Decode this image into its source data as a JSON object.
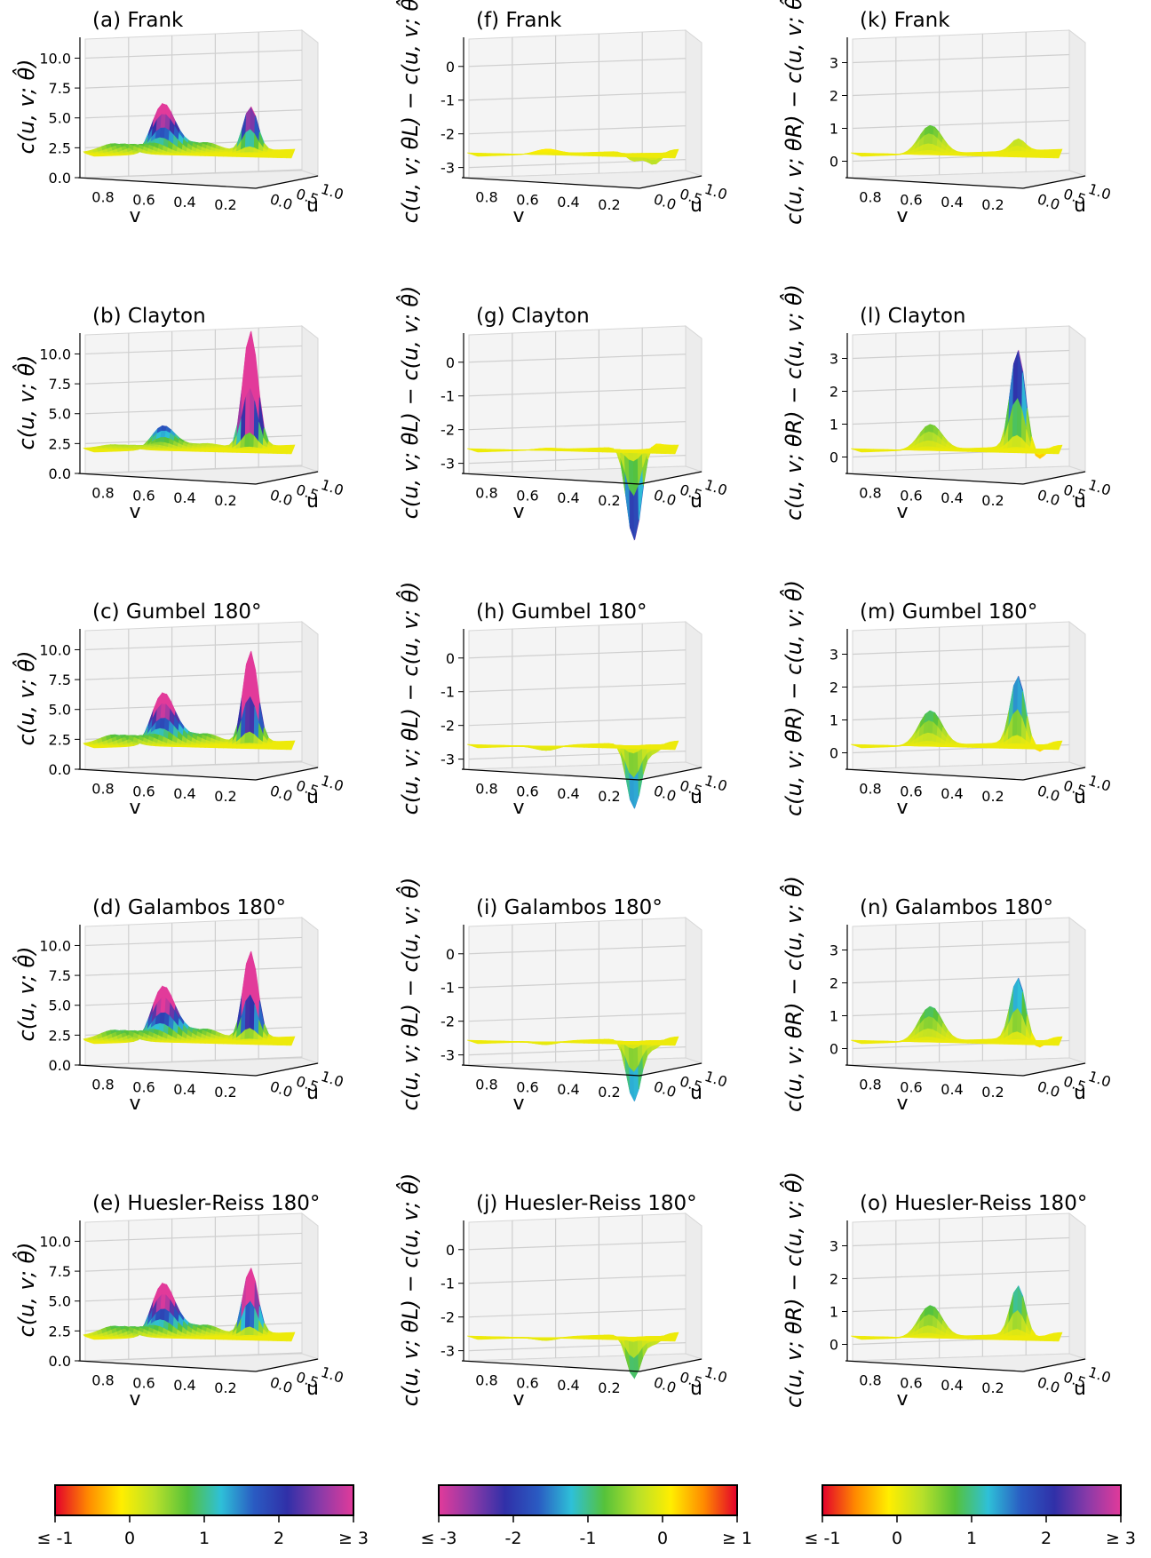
{
  "figure": {
    "columns": [
      {
        "zlabel": "c(u, v; θ̂)",
        "zticks": [
          "0.0",
          "2.5",
          "5.0",
          "7.5",
          "10.0"
        ],
        "xlabel": "v",
        "xticks": [
          "0.8",
          "0.6",
          "0.4",
          "0.2"
        ],
        "ylabel": "u",
        "yticks": [
          "0.0",
          "0.5",
          "1.0"
        ],
        "colorbar": {
          "ticks": [
            "≤ -1",
            "0",
            "1",
            "2",
            "≥ 3"
          ],
          "colors": [
            "#e3002b",
            "#ff8a00",
            "#ffee00",
            "#b8e02a",
            "#56c23a",
            "#2ec0d8",
            "#2a5bc2",
            "#3030a8",
            "#8a3aa8",
            "#e23a9a"
          ]
        },
        "panels": [
          {
            "title": "(a) Frank",
            "peak": 4.2,
            "tail_peak": 4.0,
            "corner_dip": 0
          },
          {
            "title": "(b) Clayton",
            "peak": 2.0,
            "tail_peak": 10.5,
            "corner_dip": 0
          },
          {
            "title": "(c) Gumbel 180°",
            "peak": 4.4,
            "tail_peak": 8.3,
            "corner_dip": 0
          },
          {
            "title": "(d) Galambos 180°",
            "peak": 4.6,
            "tail_peak": 7.9,
            "corner_dip": 0
          },
          {
            "title": "(e) Huesler-Reiss 180°",
            "peak": 4.5,
            "tail_peak": 6.0,
            "corner_dip": 0
          }
        ]
      },
      {
        "zlabel": "c(u, v; θL) − c(u, v; θ̂)",
        "zticks": [
          "-3",
          "-2",
          "-1",
          "0"
        ],
        "xlabel": "v",
        "xticks": [
          "0.8",
          "0.6",
          "0.4",
          "0.2"
        ],
        "ylabel": "u",
        "yticks": [
          "0.0",
          "0.5",
          "1.0"
        ],
        "colorbar": {
          "ticks": [
            "≤ -3",
            "-2",
            "-1",
            "0",
            "≥ 1"
          ],
          "colors": [
            "#e23a9a",
            "#8a3aa8",
            "#3030a8",
            "#2a5bc2",
            "#2ec0d8",
            "#56c23a",
            "#b8e02a",
            "#ffee00",
            "#ff8a00",
            "#e3002b"
          ]
        },
        "panels": [
          {
            "title": "(f) Frank",
            "peak": 0.15,
            "tail_peak": -0.3,
            "corner_dip": -0.4
          },
          {
            "title": "(g) Clayton",
            "peak": 0.05,
            "tail_peak": -3.0,
            "corner_dip": 0.1
          },
          {
            "title": "(h) Gumbel 180°",
            "peak": -0.15,
            "tail_peak": -2.1,
            "corner_dip": -0.3
          },
          {
            "title": "(i) Galambos 180°",
            "peak": -0.1,
            "tail_peak": -2.0,
            "corner_dip": -0.3
          },
          {
            "title": "(j) Huesler-Reiss 180°",
            "peak": -0.1,
            "tail_peak": -1.4,
            "corner_dip": -0.3
          }
        ]
      },
      {
        "zlabel": "c(u, v; θR) − c(u, v; θ̂)",
        "zticks": [
          "0",
          "1",
          "2",
          "3"
        ],
        "xlabel": "v",
        "xticks": [
          "0.8",
          "0.6",
          "0.4",
          "0.2"
        ],
        "ylabel": "u",
        "yticks": [
          "0.0",
          "0.5",
          "1.0"
        ],
        "colorbar": {
          "ticks": [
            "≤ -1",
            "0",
            "1",
            "2",
            "≥ 3"
          ],
          "colors": [
            "#e3002b",
            "#ff8a00",
            "#ffee00",
            "#b8e02a",
            "#56c23a",
            "#2ec0d8",
            "#2a5bc2",
            "#3030a8",
            "#8a3aa8",
            "#e23a9a"
          ]
        },
        "panels": [
          {
            "title": "(k) Frank",
            "peak": 0.9,
            "tail_peak": 0.4,
            "corner_dip": 0
          },
          {
            "title": "(l) Clayton",
            "peak": 0.8,
            "tail_peak": 3.2,
            "corner_dip": -0.4
          },
          {
            "title": "(m) Gumbel 180°",
            "peak": 1.1,
            "tail_peak": 2.2,
            "corner_dip": -0.3
          },
          {
            "title": "(n) Galambos 180°",
            "peak": 1.1,
            "tail_peak": 2.0,
            "corner_dip": -0.3
          },
          {
            "title": "(o) Huesler-Reiss 180°",
            "peak": 1.0,
            "tail_peak": 1.6,
            "corner_dip": -0.2
          }
        ]
      }
    ]
  },
  "chart_data": [
    {
      "type": "surface",
      "panel": "(a) Frank",
      "zlim": [
        0,
        11
      ],
      "zlabel": "c(u, v; θ̂)"
    },
    {
      "type": "surface",
      "panel": "(b) Clayton",
      "zlim": [
        0,
        11
      ],
      "zlabel": "c(u, v; θ̂)"
    },
    {
      "type": "surface",
      "panel": "(c) Gumbel 180°",
      "zlim": [
        0,
        11
      ],
      "zlabel": "c(u, v; θ̂)"
    },
    {
      "type": "surface",
      "panel": "(d) Galambos 180°",
      "zlim": [
        0,
        11
      ],
      "zlabel": "c(u, v; θ̂)"
    },
    {
      "type": "surface",
      "panel": "(e) Huesler-Reiss 180°",
      "zlim": [
        0,
        11
      ],
      "zlabel": "c(u, v; θ̂)"
    },
    {
      "type": "surface",
      "panel": "(f) Frank",
      "zlim": [
        -3.3,
        0.6
      ],
      "zlabel": "c(u, v; θL) − c(u, v; θ̂)"
    },
    {
      "type": "surface",
      "panel": "(g) Clayton",
      "zlim": [
        -3.3,
        0.6
      ],
      "zlabel": "c(u, v; θL) − c(u, v; θ̂)"
    },
    {
      "type": "surface",
      "panel": "(h) Gumbel 180°",
      "zlim": [
        -3.3,
        0.6
      ],
      "zlabel": "c(u, v; θL) − c(u, v; θ̂)"
    },
    {
      "type": "surface",
      "panel": "(i) Galambos 180°",
      "zlim": [
        -3.3,
        0.6
      ],
      "zlabel": "c(u, v; θL) − c(u, v; θ̂)"
    },
    {
      "type": "surface",
      "panel": "(j) Huesler-Reiss 180°",
      "zlim": [
        -3.3,
        0.6
      ],
      "zlabel": "c(u, v; θL) − c(u, v; θ̂)"
    },
    {
      "type": "surface",
      "panel": "(k) Frank",
      "zlim": [
        -0.5,
        3.5
      ],
      "zlabel": "c(u, v; θR) − c(u, v; θ̂)"
    },
    {
      "type": "surface",
      "panel": "(l) Clayton",
      "zlim": [
        -0.5,
        3.5
      ],
      "zlabel": "c(u, v; θR) − c(u, v; θ̂)"
    },
    {
      "type": "surface",
      "panel": "(m) Gumbel 180°",
      "zlim": [
        -0.5,
        3.5
      ],
      "zlabel": "c(u, v; θR) − c(u, v; θ̂)"
    },
    {
      "type": "surface",
      "panel": "(n) Galambos 180°",
      "zlim": [
        -0.5,
        3.5
      ],
      "zlabel": "c(u, v; θR) − c(u, v; θ̂)"
    },
    {
      "type": "surface",
      "panel": "(o) Huesler-Reiss 180°",
      "zlim": [
        -0.5,
        3.5
      ],
      "zlabel": "c(u, v; θR) − c(u, v; θ̂)"
    }
  ]
}
